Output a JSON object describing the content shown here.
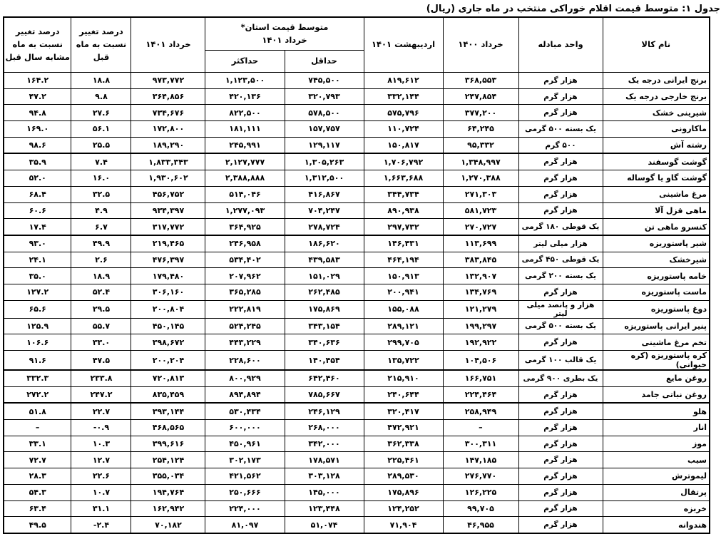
{
  "title": "جدول ۱: متوسط قیمت اقلام خوراکی منتخب در ماه جاری (ریال)",
  "table": {
    "headers": {
      "item_name": "نام کالا",
      "exchange_unit": "واحد مبادله",
      "khordad_1400": "خرداد ۱۴۰۰",
      "ordibehesht_1401": "اردیبهشت ۱۴۰۱",
      "province_avg_group": "متوسط قیمت استان*\nخرداد ۱۴۰۱",
      "min": "حداقل",
      "max": "حداکثر",
      "khordad_1401": "خرداد ۱۴۰۱",
      "pct_change_prev_month": "درصد تغییر\nنسبت به ماه\nقبل",
      "pct_change_same_month_last_year": "درصد تغییر\nنسبت به ماه\nمشابه سال قبل"
    },
    "value_columns_order": [
      "khordad_1400",
      "ordibehesht_1401",
      "min",
      "max",
      "khordad_1401",
      "pct_change_prev_month",
      "pct_change_same_month_last_year"
    ],
    "rows": [
      {
        "name": "برنج ایرانی درجه یک",
        "unit": "هزار گرم",
        "values": [
          "۳۶۸,۵۵۳",
          "۸۱۹,۶۱۲",
          "۷۴۵,۵۰۰",
          "۱,۱۲۳,۵۰۰",
          "۹۷۳,۷۷۲",
          "۱۸.۸",
          "۱۶۴.۲"
        ]
      },
      {
        "name": "برنج خارجی درجه یک",
        "unit": "هزار گرم",
        "values": [
          "۲۴۷,۸۵۴",
          "۳۳۲,۱۴۴",
          "۳۲۰,۷۹۳",
          "۴۲۰,۱۳۶",
          "۳۶۴,۸۵۶",
          "۹.۸",
          "۴۷.۲"
        ]
      },
      {
        "name": "شیرینی خشک",
        "unit": "هزار گرم",
        "values": [
          "۳۷۷,۲۰۰",
          "۵۷۵,۷۹۶",
          "۵۷۸,۵۰۰",
          "۸۲۲,۵۰۰",
          "۷۳۴,۶۷۶",
          "۲۷.۶",
          "۹۴.۸"
        ]
      },
      {
        "name": "ماکارونی",
        "unit": "یک بسته ۵۰۰ گرمی",
        "values": [
          "۶۴,۲۴۵",
          "۱۱۰,۷۲۴",
          "۱۵۷,۷۵۷",
          "۱۸۱,۱۱۱",
          "۱۷۲,۸۰۰",
          "۵۶.۱",
          "۱۶۹.۰"
        ]
      },
      {
        "name": "رشته آش",
        "unit": "۵۰۰ گرم",
        "values": [
          "۹۵,۳۳۲",
          "۱۵۰,۸۱۷",
          "۱۲۹,۱۱۷",
          "۲۴۵,۹۹۱",
          "۱۸۹,۲۹۰",
          "۲۵.۵",
          "۹۸.۶"
        ]
      },
      {
        "name": "گوشت گوسفند",
        "unit": "هزار گرم",
        "values": [
          "۱,۳۴۸,۹۹۷",
          "۱,۷۰۶,۷۹۲",
          "۱,۳۰۵,۲۶۳",
          "۲,۱۲۷,۷۷۷",
          "۱,۸۳۳,۳۴۳",
          "۷.۴",
          "۳۵.۹"
        ]
      },
      {
        "name": "گوشت گاو یا گوساله",
        "unit": "هزار گرم",
        "values": [
          "۱,۲۷۰,۳۸۸",
          "۱,۶۶۳,۶۸۸",
          "۱,۳۱۲,۵۰۰",
          "۲,۳۸۸,۸۸۸",
          "۱,۹۳۰,۶۰۲",
          "۱۶.۰",
          "۵۲.۰"
        ]
      },
      {
        "name": "مرغ ماشینی",
        "unit": "هزار گرم",
        "values": [
          "۲۷۱,۳۰۳",
          "۳۴۴,۷۳۴",
          "۴۱۶,۸۶۷",
          "۵۱۴,۰۴۶",
          "۴۵۶,۷۵۲",
          "۳۲.۵",
          "۶۸.۴"
        ]
      },
      {
        "name": "ماهی قزل آلا",
        "unit": "هزار گرم",
        "values": [
          "۵۸۱,۷۲۳",
          "۸۹۰,۹۳۸",
          "۷۰۴,۲۴۷",
          "۱,۲۷۷,۰۹۳",
          "۹۳۴,۳۹۷",
          "۴.۹",
          "۶۰.۶"
        ]
      },
      {
        "name": "کنسرو ماهی تن",
        "unit": "یک قوطی ۱۸۰ گرمی",
        "values": [
          "۲۷۰,۷۲۷",
          "۲۹۷,۷۳۲",
          "۲۷۸,۷۲۴",
          "۳۶۴,۹۲۵",
          "۳۱۷,۷۷۲",
          "۶.۷",
          "۱۷.۴"
        ]
      },
      {
        "name": "شیر پاستوریزه",
        "unit": "هزار میلی لیتر",
        "values": [
          "۱۱۳,۶۹۹",
          "۱۴۶,۴۳۱",
          "۱۸۶,۶۲۰",
          "۲۴۶,۹۵۸",
          "۲۱۹,۴۶۵",
          "۴۹.۹",
          "۹۳.۰"
        ]
      },
      {
        "name": "شیرخشک",
        "unit": "یک قوطی ۴۵۰ گرمی",
        "values": [
          "۳۸۳,۸۴۵",
          "۴۶۴,۱۹۴",
          "۴۳۹,۵۸۳",
          "۵۳۴,۴۰۲",
          "۴۷۶,۳۹۷",
          "۲.۶",
          "۲۴.۱"
        ]
      },
      {
        "name": "خامه پاستوریزه",
        "unit": "یک بسته ۲۰۰ گرمی",
        "values": [
          "۱۳۲,۹۰۷",
          "۱۵۰,۹۱۳",
          "۱۵۱,۰۲۹",
          "۲۰۷,۹۶۲",
          "۱۷۹,۴۸۰",
          "۱۸.۹",
          "۳۵.۰"
        ]
      },
      {
        "name": "ماست پاستوریزه",
        "unit": "هزار گرم",
        "values": [
          "۱۳۴,۷۶۹",
          "۲۰۰,۹۴۱",
          "۲۶۲,۴۸۵",
          "۳۶۵,۲۸۵",
          "۳۰۶,۱۶۰",
          "۵۲.۴",
          "۱۲۷.۲"
        ]
      },
      {
        "name": "دوغ پاستوریزه",
        "unit": "هزار و پانصد میلی لیتر",
        "values": [
          "۱۲۱,۲۷۹",
          "۱۵۵,۰۸۸",
          "۱۷۵,۸۶۹",
          "۲۲۲,۸۱۹",
          "۲۰۰,۸۰۴",
          "۲۹.۵",
          "۶۵.۶"
        ]
      },
      {
        "name": "پنیر ایرانی پاستوریزه",
        "unit": "یک بسته ۵۰۰ گرمی",
        "values": [
          "۱۹۹,۲۹۷",
          "۲۸۹,۱۲۱",
          "۳۴۳,۱۵۴",
          "۵۲۴,۲۴۵",
          "۴۵۰,۱۴۵",
          "۵۵.۷",
          "۱۲۵.۹"
        ]
      },
      {
        "name": "تخم مرغ ماشینی",
        "unit": "هزار گرم",
        "values": [
          "۱۹۲,۹۲۲",
          "۲۹۹,۷۰۵",
          "۳۴۰,۶۳۶",
          "۴۴۳,۲۲۹",
          "۳۹۸,۶۷۲",
          "۳۳.۰",
          "۱۰۶.۶"
        ]
      },
      {
        "name": "کره پاستوریزه (کره حیوانی)",
        "unit": "یک قالب ۱۰۰ گرمی",
        "values": [
          "۱۰۴,۵۰۶",
          "۱۳۵,۷۲۲",
          "۱۴۰,۴۵۴",
          "۲۲۸,۶۰۰",
          "۲۰۰,۲۰۴",
          "۴۷.۵",
          "۹۱.۶"
        ]
      },
      {
        "name": "روغن مایع",
        "unit": "یک بطری ۹۰۰ گرمی",
        "values": [
          "۱۶۶,۷۵۱",
          "۲۱۵,۹۱۰",
          "۶۴۲,۴۶۰",
          "۸۰۰,۹۲۹",
          "۷۲۰,۸۱۳",
          "۲۳۳.۸",
          "۳۳۲.۳"
        ]
      },
      {
        "name": "روغن نباتی جامد",
        "unit": "هزار گرم",
        "values": [
          "۲۲۴,۴۶۴",
          "۲۴۰,۶۴۴",
          "۷۸۵,۶۶۷",
          "۸۹۴,۸۹۴",
          "۸۳۵,۴۵۹",
          "۲۴۷.۲",
          "۲۷۲.۲"
        ]
      },
      {
        "name": "هلو",
        "unit": "هزار گرم",
        "values": [
          "۲۵۸,۹۴۹",
          "۳۲۰,۴۱۷",
          "۲۴۶,۱۲۹",
          "۵۳۰,۴۳۴",
          "۳۹۳,۱۴۴",
          "۲۲.۷",
          "۵۱.۸"
        ]
      },
      {
        "name": "انار",
        "unit": "هزار گرم",
        "values": [
          "–",
          "۴۷۲,۹۲۱",
          "۲۶۸,۰۰۰",
          "۶۰۰,۰۰۰",
          "۴۶۸,۵۶۵",
          "-۰.۹",
          "–"
        ]
      },
      {
        "name": "موز",
        "unit": "هزار گرم",
        "values": [
          "۳۰۰,۳۱۱",
          "۳۶۲,۳۳۸",
          "۳۴۲,۰۰۰",
          "۴۵۰,۹۶۱",
          "۳۹۹,۶۱۶",
          "۱۰.۳",
          "۳۳.۱"
        ]
      },
      {
        "name": "سیب",
        "unit": "هزار گرم",
        "values": [
          "۱۴۷,۱۸۵",
          "۲۲۵,۴۶۱",
          "۱۷۸,۵۷۱",
          "۳۰۲,۱۷۳",
          "۲۵۴,۱۲۴",
          "۱۲.۷",
          "۷۲.۷"
        ]
      },
      {
        "name": "لیموترش",
        "unit": "هزار گرم",
        "values": [
          "۲۷۶,۷۷۰",
          "۲۸۹,۵۳۰",
          "۳۰۳,۱۲۸",
          "۴۲۱,۵۶۲",
          "۳۵۵,۰۳۴",
          "۲۲.۶",
          "۲۸.۳"
        ]
      },
      {
        "name": "پرتقال",
        "unit": "هزار گرم",
        "values": [
          "۱۲۶,۲۲۵",
          "۱۷۵,۸۹۶",
          "۱۴۵,۰۰۰",
          "۲۵۰,۶۶۶",
          "۱۹۴,۷۶۴",
          "۱۰.۷",
          "۵۴.۳"
        ]
      },
      {
        "name": "خربزه",
        "unit": "هزار گرم",
        "values": [
          "۹۹,۷۰۵",
          "۱۲۴,۲۵۲",
          "۱۲۳,۴۴۸",
          "۲۲۴,۰۰۰",
          "۱۶۲,۹۴۲",
          "۳۱.۱",
          "۶۳.۴"
        ]
      },
      {
        "name": "هندوانه",
        "unit": "هزار گرم",
        "values": [
          "۴۶,۹۵۵",
          "۷۱,۹۰۴",
          "۵۱,۰۷۴",
          "۸۱,۰۹۷",
          "۷۰,۱۸۲",
          "-۲.۴",
          "۴۹.۵"
        ]
      }
    ]
  }
}
